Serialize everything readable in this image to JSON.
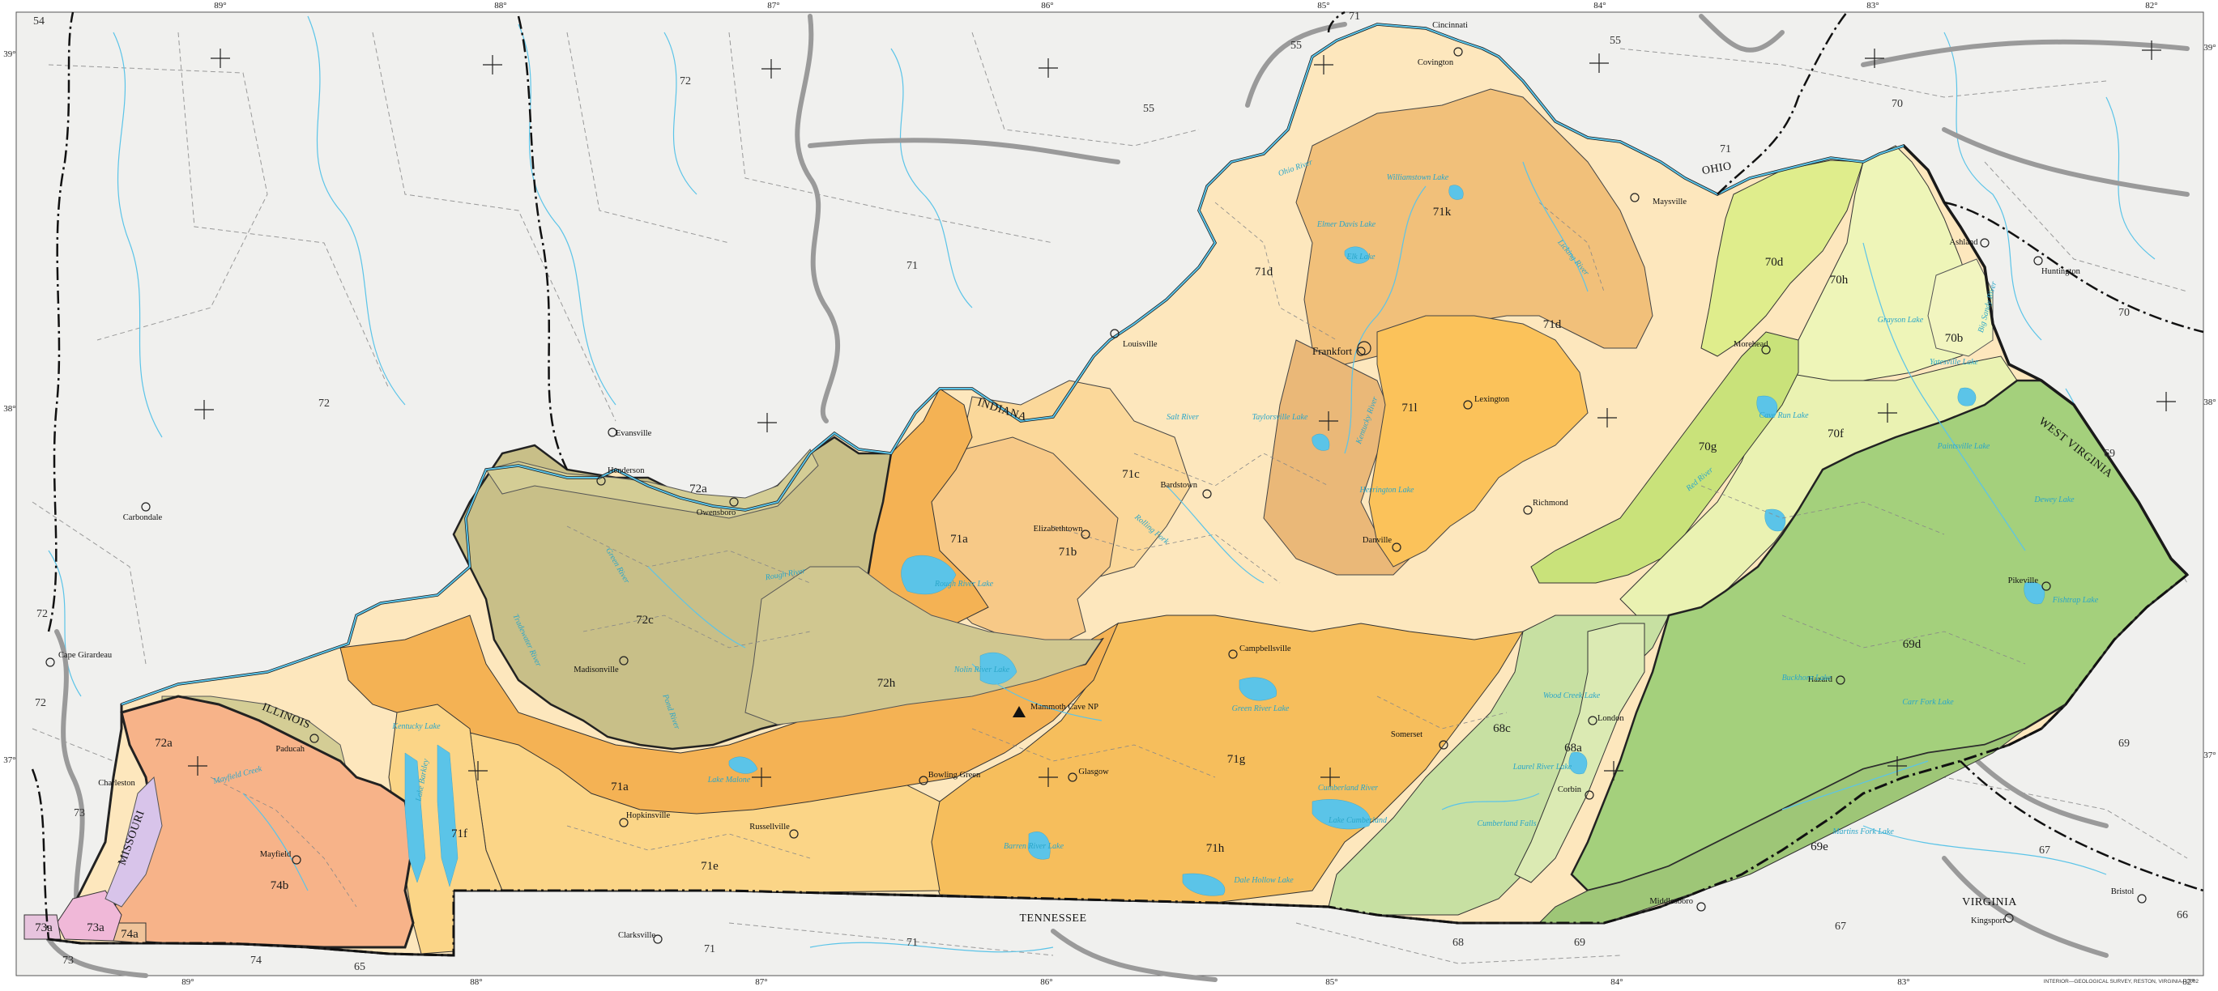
{
  "colors": {
    "background": "#f0f0ee",
    "water": "#5bc4e8",
    "eco_71": "#fde7bd",
    "eco_71c": "#fbd89a",
    "eco_71k": "#f1c07a",
    "eco_71l": "#fbc25a",
    "eco_71a": "#f4b254",
    "eco_71g": "#f6be5c",
    "eco_71e": "#fbd587",
    "eco_72": "#c8bf88",
    "eco_72a": "#d4cd95",
    "eco_74b": "#f7b389",
    "eco_73": "#f0b8d8",
    "eco_70": "#e8f2b0",
    "eco_70g": "#c9e27a",
    "eco_68": "#c7e0a2",
    "eco_69": "#a4d07c"
  },
  "longitude_labels": [
    "89°",
    "88°",
    "87°",
    "86°",
    "85°",
    "84°",
    "83°",
    "82°"
  ],
  "latitude_labels": [
    "39°",
    "38°",
    "37°"
  ],
  "ecoregion_labels": {
    "r71d": "71d",
    "r71d_east": "71d",
    "r71k": "71k",
    "r71l": "71l",
    "r71c": "71c",
    "r71b": "71b",
    "r71a_north": "71a",
    "r71a_south": "71a",
    "r71g": "71g",
    "r71e": "71e",
    "r71f": "71f",
    "r71h": "71h",
    "r72a_north": "72a",
    "r72a_south": "72a",
    "r72c": "72c",
    "r72h": "72h",
    "r74b": "74b",
    "r74a": "74a",
    "r73a_west": "73a",
    "r73a_east": "73a",
    "r70d": "70d",
    "r70h": "70h",
    "r70b": "70b",
    "r70f": "70f",
    "r70g": "70g",
    "r68a": "68a",
    "r68c": "68c",
    "r69d": "69d",
    "r69e": "69e"
  },
  "surrounding_labels": {
    "s54": "54",
    "s55_a": "55",
    "s55_b": "55",
    "s55_c": "55",
    "s71_a": "71",
    "s71_b": "71",
    "s71_c": "71",
    "s71_d": "71",
    "s71_e": "71",
    "s72_a": "72",
    "s72_b": "72",
    "s72_c": "72",
    "s72_d": "72",
    "s73_a": "73",
    "s73_b": "73",
    "s74": "74",
    "s65": "65",
    "s68": "68",
    "s69_a": "69",
    "s69_b": "69",
    "s69_c": "69",
    "s70_a": "70",
    "s70_b": "70",
    "s67_a": "67",
    "s67_b": "67",
    "s66": "66"
  },
  "states": {
    "ohio": "OHIO",
    "indiana": "INDIANA",
    "illinois": "ILLINOIS",
    "missouri": "MISSOURI",
    "tennessee": "TENNESSEE",
    "virginia": "VIRGINIA",
    "west_virginia": "WEST VIRGINIA"
  },
  "cities": {
    "cincinnati": "Cincinnati",
    "covington": "Covington",
    "maysville": "Maysville",
    "ashland": "Ashland",
    "huntington": "Huntington",
    "louisville": "Louisville",
    "frankfort": "Frankfort",
    "lexington": "Lexington",
    "morehead": "Morehead",
    "evansville": "Evansville",
    "henderson": "Henderson",
    "owensboro": "Owensboro",
    "carbondale": "Carbondale",
    "elizabethtown": "Elizabethtown",
    "bardstown": "Bardstown",
    "richmond": "Richmond",
    "danville": "Danville",
    "cape_girardeau": "Cape Girardeau",
    "madisonville": "Madisonville",
    "campbellsville": "Campbellsville",
    "mammoth_cave": "Mammoth Cave NP",
    "somerset": "Somerset",
    "london": "London",
    "pikeville": "Pikeville",
    "hazard": "Hazard",
    "paducah": "Paducah",
    "charleston": "Charleston",
    "mayfield": "Mayfield",
    "hopkinsville": "Hopkinsville",
    "russellville": "Russellville",
    "bowling_green": "Bowling Green",
    "glasgow": "Glasgow",
    "corbin": "Corbin",
    "middlesboro": "Middlesboro",
    "clarksville": "Clarksville",
    "bristol": "Bristol",
    "kingsport": "Kingsport"
  },
  "water_labels": {
    "ohio_river": "Ohio River",
    "williamstown": "Williamstown Lake",
    "elmer_davis": "Elmer Davis Lake",
    "elk": "Elk Lake",
    "taylorsville": "Taylorsville Lake",
    "herrington": "Herrington Lake",
    "kentucky_river": "Kentucky River",
    "licking_river": "Licking River",
    "salt_river": "Salt River",
    "rolling_fork": "Rolling Fork",
    "grayson": "Grayson Lake",
    "yatesville": "Yatesville Lake",
    "cave_run": "Cave Run Lake",
    "paintsville": "Paintsville Lake",
    "fishtrap": "Fishtrap Lake",
    "dewey": "Dewey Lake",
    "buckhorn": "Buckhorn Lake",
    "carr_fork": "Carr Fork Lake",
    "martins_fork": "Martins Fork Lake",
    "laurel_river": "Laurel River Lake",
    "wood_creek": "Wood Creek Lake",
    "cumberland_falls": "Cumberland Falls",
    "lake_cumberland": "Lake Cumberland",
    "dale_hollow": "Dale Hollow Lake",
    "barren_river": "Barren River Lake",
    "green_river": "Green River Lake",
    "nolin_river": "Nolin River Lake",
    "rough_river": "Rough River Lake",
    "lake_malone": "Lake Malone",
    "kentucky_lake": "Kentucky Lake",
    "lake_barkley": "Lake Barkley",
    "mayfield_creek": "Mayfield Creek",
    "green_river_name": "Green River",
    "rough_river_name": "Rough River",
    "pond_river": "Pond River",
    "tradewater": "Tradewater River",
    "cumberland_river": "Cumberland River",
    "big_sandy": "Big Sandy River",
    "red_river": "Red River"
  },
  "credit": "INTERIOR—GEOLOGICAL SURVEY, RESTON, VIRGINIA—2002"
}
